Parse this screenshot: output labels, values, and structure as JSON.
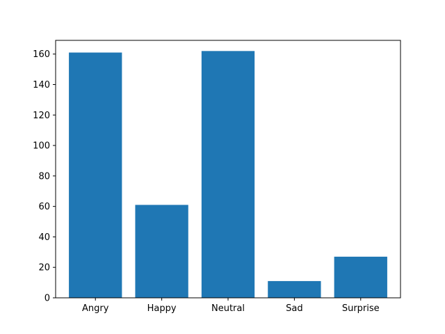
{
  "chart_data": {
    "type": "bar",
    "categories": [
      "Angry",
      "Happy",
      "Neutral",
      "Sad",
      "Surprise"
    ],
    "values": [
      161,
      61,
      162,
      11,
      27
    ],
    "ylim": [
      0,
      169
    ],
    "yticks": [
      0,
      20,
      40,
      60,
      80,
      100,
      120,
      140,
      160
    ],
    "bar_color": "#1f77b4",
    "grid": false,
    "legend": "none"
  }
}
